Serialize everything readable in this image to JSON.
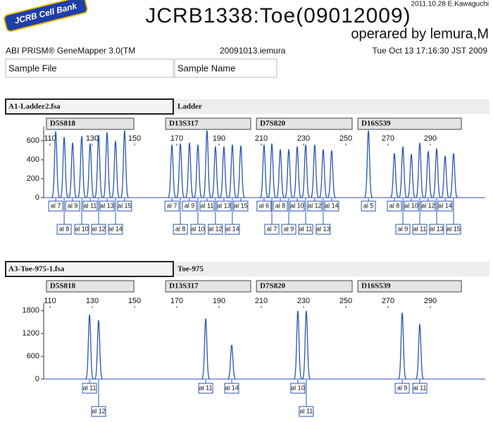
{
  "header": {
    "logo": "JCRB Cell Bank",
    "credit": "2011.10.28 E.Kawaguchi",
    "title": "JCRB1338:Toe(09012009)",
    "subtitle": "operared by lemura,M",
    "software": "ABI PRISM® GeneMapper 3.0(TM",
    "file": "20091013.iemura",
    "date": "Tue Oct 13 17:16:30 JST 2009",
    "sample_file_label": "Sample File",
    "sample_name_label": "Sample Name"
  },
  "chart_data": [
    {
      "type": "electropherogram",
      "sample_file": "A1-Ladder2.fsa",
      "sample_name": "Ladder",
      "color": "#2a56b0",
      "xlim": [
        107,
        316
      ],
      "xticks": [
        110,
        130,
        150,
        170,
        190,
        210,
        230,
        250,
        270,
        290
      ],
      "ylim": [
        0,
        750
      ],
      "yticks": [
        0,
        200,
        400,
        600
      ],
      "markers": [
        {
          "name": "D5S818",
          "range": [
            108.3,
            149.7
          ]
        },
        {
          "name": "D13S317",
          "range": [
            164.7,
            205
          ]
        },
        {
          "name": "D7S820",
          "range": [
            207.7,
            253
          ]
        },
        {
          "name": "D16S539",
          "range": [
            255.7,
            304.7
          ]
        }
      ],
      "peaks": {
        "x": [
          112.7,
          116.7,
          120.7,
          125,
          129,
          133,
          137,
          141,
          145.3,
          167.7,
          171.7,
          176,
          180,
          184.3,
          188.3,
          192.3,
          196.3,
          200.3,
          211.3,
          215,
          219,
          223,
          227,
          231,
          235.3,
          239.3,
          243.3,
          260.7,
          273,
          277,
          281,
          285,
          289,
          293,
          297,
          301
        ],
        "values": [
          700,
          640,
          580,
          650,
          570,
          660,
          690,
          600,
          710,
          560,
          570,
          580,
          560,
          710,
          540,
          540,
          560,
          550,
          560,
          570,
          510,
          510,
          540,
          560,
          560,
          510,
          500,
          710,
          470,
          540,
          460,
          580,
          490,
          520,
          440,
          470
        ],
        "alleles": [
          "al 7",
          "al 8",
          "al 9",
          "al 10",
          "al 11",
          "al 12",
          "al 13",
          "al 14",
          "al 15",
          "al 7",
          "al 8",
          "al 9",
          "al 10",
          "al 11",
          "al 12",
          "al 13",
          "al 14",
          "al 15",
          "al 6",
          "al 7",
          "al 8",
          "al 9",
          "al 10",
          "al 11",
          "al 12",
          "al 13",
          "al 14",
          "al 5",
          "al 8",
          "al 9",
          "al 10",
          "al 11",
          "al 12",
          "al 13",
          "al 14",
          "al 15"
        ]
      }
    },
    {
      "type": "electropherogram",
      "sample_file": "A3-Toe-975-1.fsa",
      "sample_name": "Toe-975",
      "color": "#2a56b0",
      "xlim": [
        107,
        316
      ],
      "xticks": [
        110,
        130,
        150,
        170,
        190,
        210,
        230,
        250,
        270,
        290
      ],
      "ylim": [
        0,
        2000
      ],
      "yticks": [
        0,
        600,
        1200,
        1800
      ],
      "markers": [
        {
          "name": "D5S818",
          "range": [
            108.3,
            149.7
          ]
        },
        {
          "name": "D13S317",
          "range": [
            164.7,
            205
          ]
        },
        {
          "name": "D7S820",
          "range": [
            207.7,
            253
          ]
        },
        {
          "name": "D16S539",
          "range": [
            255.7,
            304.7
          ]
        }
      ],
      "peaks": {
        "x": [
          128.7,
          133,
          183.7,
          196,
          227.3,
          231.3,
          276.7,
          285
        ],
        "values": [
          1700,
          1550,
          1600,
          900,
          1800,
          1800,
          1750,
          1450
        ],
        "alleles": [
          "al 11",
          "al 12",
          "al 11",
          "al 14",
          "al 10",
          "al 11",
          "al 9",
          "al 11"
        ]
      }
    }
  ]
}
